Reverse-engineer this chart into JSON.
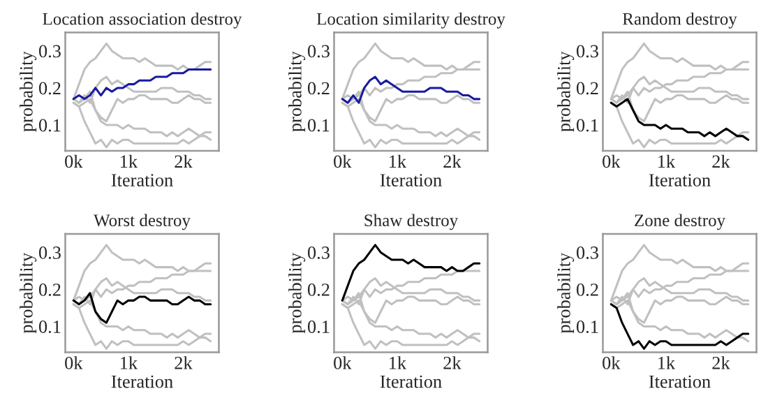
{
  "chart_data": [
    {
      "type": "line",
      "title": "Location association destroy",
      "xlabel": "Iteration",
      "ylabel": "probability",
      "x": [
        0,
        100,
        200,
        300,
        400,
        500,
        600,
        700,
        800,
        900,
        1000,
        1100,
        1200,
        1300,
        1400,
        1500,
        1600,
        1700,
        1800,
        1900,
        2000,
        2100,
        2200,
        2300,
        2400,
        2500
      ],
      "xlim": [
        -150,
        2650
      ],
      "xticks": [
        {
          "value": 0,
          "label": "0k"
        },
        {
          "value": 1000,
          "label": "1k"
        },
        {
          "value": 2000,
          "label": "2k"
        }
      ],
      "ylim": [
        0.03,
        0.35
      ],
      "yticks": [
        0.1,
        0.2,
        0.3
      ],
      "grid": false,
      "legend": false,
      "series": [
        {
          "color": "#c0c0c0",
          "values": [
            0.17,
            0.16,
            0.18,
            0.16,
            0.2,
            0.22,
            0.23,
            0.21,
            0.22,
            0.21,
            0.2,
            0.19,
            0.19,
            0.19,
            0.19,
            0.19,
            0.2,
            0.2,
            0.2,
            0.19,
            0.19,
            0.19,
            0.18,
            0.18,
            0.17,
            0.17
          ]
        },
        {
          "color": "#c0c0c0",
          "values": [
            0.16,
            0.15,
            0.16,
            0.17,
            0.14,
            0.11,
            0.1,
            0.1,
            0.1,
            0.09,
            0.1,
            0.09,
            0.09,
            0.09,
            0.08,
            0.08,
            0.08,
            0.07,
            0.08,
            0.07,
            0.08,
            0.09,
            0.08,
            0.07,
            0.07,
            0.06
          ]
        },
        {
          "color": "#c0c0c0",
          "values": [
            0.17,
            0.16,
            0.17,
            0.19,
            0.14,
            0.12,
            0.11,
            0.14,
            0.17,
            0.16,
            0.17,
            0.17,
            0.18,
            0.18,
            0.17,
            0.17,
            0.17,
            0.17,
            0.16,
            0.16,
            0.17,
            0.18,
            0.17,
            0.17,
            0.16,
            0.16
          ]
        },
        {
          "color": "#c0c0c0",
          "values": [
            0.17,
            0.21,
            0.25,
            0.27,
            0.28,
            0.3,
            0.32,
            0.3,
            0.29,
            0.28,
            0.28,
            0.28,
            0.27,
            0.28,
            0.27,
            0.26,
            0.26,
            0.26,
            0.26,
            0.25,
            0.26,
            0.25,
            0.25,
            0.26,
            0.27,
            0.27
          ]
        },
        {
          "color": "#c0c0c0",
          "values": [
            0.16,
            0.15,
            0.11,
            0.08,
            0.05,
            0.06,
            0.04,
            0.06,
            0.05,
            0.06,
            0.06,
            0.05,
            0.05,
            0.05,
            0.05,
            0.05,
            0.05,
            0.05,
            0.05,
            0.05,
            0.06,
            0.05,
            0.06,
            0.07,
            0.08,
            0.08
          ]
        },
        {
          "color": "#1a1aa0",
          "values": [
            0.17,
            0.18,
            0.17,
            0.18,
            0.2,
            0.18,
            0.2,
            0.19,
            0.2,
            0.2,
            0.21,
            0.21,
            0.22,
            0.22,
            0.22,
            0.23,
            0.23,
            0.23,
            0.24,
            0.24,
            0.24,
            0.25,
            0.25,
            0.25,
            0.25,
            0.25
          ]
        }
      ]
    },
    {
      "type": "line",
      "title": "Location similarity destroy",
      "xlabel": "Iteration",
      "ylabel": "probability",
      "x": [
        0,
        100,
        200,
        300,
        400,
        500,
        600,
        700,
        800,
        900,
        1000,
        1100,
        1200,
        1300,
        1400,
        1500,
        1600,
        1700,
        1800,
        1900,
        2000,
        2100,
        2200,
        2300,
        2400,
        2500
      ],
      "xlim": [
        -150,
        2650
      ],
      "xticks": [
        {
          "value": 0,
          "label": "0k"
        },
        {
          "value": 1000,
          "label": "1k"
        },
        {
          "value": 2000,
          "label": "2k"
        }
      ],
      "ylim": [
        0.03,
        0.35
      ],
      "yticks": [
        0.1,
        0.2,
        0.3
      ],
      "grid": false,
      "legend": false,
      "series": [
        {
          "color": "#c0c0c0",
          "values": [
            0.17,
            0.18,
            0.17,
            0.18,
            0.2,
            0.18,
            0.2,
            0.19,
            0.2,
            0.2,
            0.21,
            0.21,
            0.22,
            0.22,
            0.22,
            0.23,
            0.23,
            0.23,
            0.24,
            0.24,
            0.24,
            0.25,
            0.25,
            0.25,
            0.25,
            0.25
          ]
        },
        {
          "color": "#c0c0c0",
          "values": [
            0.16,
            0.15,
            0.16,
            0.17,
            0.14,
            0.11,
            0.1,
            0.1,
            0.1,
            0.09,
            0.1,
            0.09,
            0.09,
            0.09,
            0.08,
            0.08,
            0.08,
            0.07,
            0.08,
            0.07,
            0.08,
            0.09,
            0.08,
            0.07,
            0.07,
            0.06
          ]
        },
        {
          "color": "#c0c0c0",
          "values": [
            0.17,
            0.16,
            0.17,
            0.19,
            0.14,
            0.12,
            0.11,
            0.14,
            0.17,
            0.16,
            0.17,
            0.17,
            0.18,
            0.18,
            0.17,
            0.17,
            0.17,
            0.17,
            0.16,
            0.16,
            0.17,
            0.18,
            0.17,
            0.17,
            0.16,
            0.16
          ]
        },
        {
          "color": "#c0c0c0",
          "values": [
            0.17,
            0.21,
            0.25,
            0.27,
            0.28,
            0.3,
            0.32,
            0.3,
            0.29,
            0.28,
            0.28,
            0.28,
            0.27,
            0.28,
            0.27,
            0.26,
            0.26,
            0.26,
            0.26,
            0.25,
            0.26,
            0.25,
            0.25,
            0.26,
            0.27,
            0.27
          ]
        },
        {
          "color": "#c0c0c0",
          "values": [
            0.16,
            0.15,
            0.11,
            0.08,
            0.05,
            0.06,
            0.04,
            0.06,
            0.05,
            0.06,
            0.06,
            0.05,
            0.05,
            0.05,
            0.05,
            0.05,
            0.05,
            0.05,
            0.05,
            0.05,
            0.06,
            0.05,
            0.06,
            0.07,
            0.08,
            0.08
          ]
        },
        {
          "color": "#1a1aa0",
          "values": [
            0.17,
            0.16,
            0.18,
            0.16,
            0.2,
            0.22,
            0.23,
            0.21,
            0.22,
            0.21,
            0.2,
            0.19,
            0.19,
            0.19,
            0.19,
            0.19,
            0.2,
            0.2,
            0.2,
            0.19,
            0.19,
            0.19,
            0.18,
            0.18,
            0.17,
            0.17
          ]
        }
      ]
    },
    {
      "type": "line",
      "title": "Random destroy",
      "xlabel": "Iteration",
      "ylabel": "probability",
      "x": [
        0,
        100,
        200,
        300,
        400,
        500,
        600,
        700,
        800,
        900,
        1000,
        1100,
        1200,
        1300,
        1400,
        1500,
        1600,
        1700,
        1800,
        1900,
        2000,
        2100,
        2200,
        2300,
        2400,
        2500
      ],
      "xlim": [
        -150,
        2650
      ],
      "xticks": [
        {
          "value": 0,
          "label": "0k"
        },
        {
          "value": 1000,
          "label": "1k"
        },
        {
          "value": 2000,
          "label": "2k"
        }
      ],
      "ylim": [
        0.03,
        0.35
      ],
      "yticks": [
        0.1,
        0.2,
        0.3
      ],
      "grid": false,
      "legend": false,
      "series": [
        {
          "color": "#c0c0c0",
          "values": [
            0.17,
            0.18,
            0.17,
            0.18,
            0.2,
            0.18,
            0.2,
            0.19,
            0.2,
            0.2,
            0.21,
            0.21,
            0.22,
            0.22,
            0.22,
            0.23,
            0.23,
            0.23,
            0.24,
            0.24,
            0.24,
            0.25,
            0.25,
            0.25,
            0.25,
            0.25
          ]
        },
        {
          "color": "#c0c0c0",
          "values": [
            0.17,
            0.16,
            0.18,
            0.16,
            0.2,
            0.22,
            0.23,
            0.21,
            0.22,
            0.21,
            0.2,
            0.19,
            0.19,
            0.19,
            0.19,
            0.19,
            0.2,
            0.2,
            0.2,
            0.19,
            0.19,
            0.19,
            0.18,
            0.18,
            0.17,
            0.17
          ]
        },
        {
          "color": "#c0c0c0",
          "values": [
            0.17,
            0.16,
            0.17,
            0.19,
            0.14,
            0.12,
            0.11,
            0.14,
            0.17,
            0.16,
            0.17,
            0.17,
            0.18,
            0.18,
            0.17,
            0.17,
            0.17,
            0.17,
            0.16,
            0.16,
            0.17,
            0.18,
            0.17,
            0.17,
            0.16,
            0.16
          ]
        },
        {
          "color": "#c0c0c0",
          "values": [
            0.17,
            0.21,
            0.25,
            0.27,
            0.28,
            0.3,
            0.32,
            0.3,
            0.29,
            0.28,
            0.28,
            0.28,
            0.27,
            0.28,
            0.27,
            0.26,
            0.26,
            0.26,
            0.26,
            0.25,
            0.26,
            0.25,
            0.25,
            0.26,
            0.27,
            0.27
          ]
        },
        {
          "color": "#c0c0c0",
          "values": [
            0.16,
            0.15,
            0.11,
            0.08,
            0.05,
            0.06,
            0.04,
            0.06,
            0.05,
            0.06,
            0.06,
            0.05,
            0.05,
            0.05,
            0.05,
            0.05,
            0.05,
            0.05,
            0.05,
            0.05,
            0.06,
            0.05,
            0.06,
            0.07,
            0.08,
            0.08
          ]
        },
        {
          "color": "#000000",
          "values": [
            0.16,
            0.15,
            0.16,
            0.17,
            0.14,
            0.11,
            0.1,
            0.1,
            0.1,
            0.09,
            0.1,
            0.09,
            0.09,
            0.09,
            0.08,
            0.08,
            0.08,
            0.07,
            0.08,
            0.07,
            0.08,
            0.09,
            0.08,
            0.07,
            0.07,
            0.06
          ]
        }
      ]
    },
    {
      "type": "line",
      "title": "Worst destroy",
      "xlabel": "Iteration",
      "ylabel": "probability",
      "x": [
        0,
        100,
        200,
        300,
        400,
        500,
        600,
        700,
        800,
        900,
        1000,
        1100,
        1200,
        1300,
        1400,
        1500,
        1600,
        1700,
        1800,
        1900,
        2000,
        2100,
        2200,
        2300,
        2400,
        2500
      ],
      "xlim": [
        -150,
        2650
      ],
      "xticks": [
        {
          "value": 0,
          "label": "0k"
        },
        {
          "value": 1000,
          "label": "1k"
        },
        {
          "value": 2000,
          "label": "2k"
        }
      ],
      "ylim": [
        0.03,
        0.35
      ],
      "yticks": [
        0.1,
        0.2,
        0.3
      ],
      "grid": false,
      "legend": false,
      "series": [
        {
          "color": "#c0c0c0",
          "values": [
            0.17,
            0.18,
            0.17,
            0.18,
            0.2,
            0.18,
            0.2,
            0.19,
            0.2,
            0.2,
            0.21,
            0.21,
            0.22,
            0.22,
            0.22,
            0.23,
            0.23,
            0.23,
            0.24,
            0.24,
            0.24,
            0.25,
            0.25,
            0.25,
            0.25,
            0.25
          ]
        },
        {
          "color": "#c0c0c0",
          "values": [
            0.17,
            0.16,
            0.18,
            0.16,
            0.2,
            0.22,
            0.23,
            0.21,
            0.22,
            0.21,
            0.2,
            0.19,
            0.19,
            0.19,
            0.19,
            0.19,
            0.2,
            0.2,
            0.2,
            0.19,
            0.19,
            0.19,
            0.18,
            0.18,
            0.17,
            0.17
          ]
        },
        {
          "color": "#c0c0c0",
          "values": [
            0.16,
            0.15,
            0.16,
            0.17,
            0.14,
            0.11,
            0.1,
            0.1,
            0.1,
            0.09,
            0.1,
            0.09,
            0.09,
            0.09,
            0.08,
            0.08,
            0.08,
            0.07,
            0.08,
            0.07,
            0.08,
            0.09,
            0.08,
            0.07,
            0.07,
            0.06
          ]
        },
        {
          "color": "#c0c0c0",
          "values": [
            0.17,
            0.21,
            0.25,
            0.27,
            0.28,
            0.3,
            0.32,
            0.3,
            0.29,
            0.28,
            0.28,
            0.28,
            0.27,
            0.28,
            0.27,
            0.26,
            0.26,
            0.26,
            0.26,
            0.25,
            0.26,
            0.25,
            0.25,
            0.26,
            0.27,
            0.27
          ]
        },
        {
          "color": "#c0c0c0",
          "values": [
            0.16,
            0.15,
            0.11,
            0.08,
            0.05,
            0.06,
            0.04,
            0.06,
            0.05,
            0.06,
            0.06,
            0.05,
            0.05,
            0.05,
            0.05,
            0.05,
            0.05,
            0.05,
            0.05,
            0.05,
            0.06,
            0.05,
            0.06,
            0.07,
            0.08,
            0.08
          ]
        },
        {
          "color": "#000000",
          "values": [
            0.17,
            0.16,
            0.17,
            0.19,
            0.14,
            0.12,
            0.11,
            0.14,
            0.17,
            0.16,
            0.17,
            0.17,
            0.18,
            0.18,
            0.17,
            0.17,
            0.17,
            0.17,
            0.16,
            0.16,
            0.17,
            0.18,
            0.17,
            0.17,
            0.16,
            0.16
          ]
        }
      ]
    },
    {
      "type": "line",
      "title": "Shaw destroy",
      "xlabel": "Iteration",
      "ylabel": "probability",
      "x": [
        0,
        100,
        200,
        300,
        400,
        500,
        600,
        700,
        800,
        900,
        1000,
        1100,
        1200,
        1300,
        1400,
        1500,
        1600,
        1700,
        1800,
        1900,
        2000,
        2100,
        2200,
        2300,
        2400,
        2500
      ],
      "xlim": [
        -150,
        2650
      ],
      "xticks": [
        {
          "value": 0,
          "label": "0k"
        },
        {
          "value": 1000,
          "label": "1k"
        },
        {
          "value": 2000,
          "label": "2k"
        }
      ],
      "ylim": [
        0.03,
        0.35
      ],
      "yticks": [
        0.1,
        0.2,
        0.3
      ],
      "grid": false,
      "legend": false,
      "series": [
        {
          "color": "#c0c0c0",
          "values": [
            0.17,
            0.18,
            0.17,
            0.18,
            0.2,
            0.18,
            0.2,
            0.19,
            0.2,
            0.2,
            0.21,
            0.21,
            0.22,
            0.22,
            0.22,
            0.23,
            0.23,
            0.23,
            0.24,
            0.24,
            0.24,
            0.25,
            0.25,
            0.25,
            0.25,
            0.25
          ]
        },
        {
          "color": "#c0c0c0",
          "values": [
            0.17,
            0.16,
            0.18,
            0.16,
            0.2,
            0.22,
            0.23,
            0.21,
            0.22,
            0.21,
            0.2,
            0.19,
            0.19,
            0.19,
            0.19,
            0.19,
            0.2,
            0.2,
            0.2,
            0.19,
            0.19,
            0.19,
            0.18,
            0.18,
            0.17,
            0.17
          ]
        },
        {
          "color": "#c0c0c0",
          "values": [
            0.16,
            0.15,
            0.16,
            0.17,
            0.14,
            0.11,
            0.1,
            0.1,
            0.1,
            0.09,
            0.1,
            0.09,
            0.09,
            0.09,
            0.08,
            0.08,
            0.08,
            0.07,
            0.08,
            0.07,
            0.08,
            0.09,
            0.08,
            0.07,
            0.07,
            0.06
          ]
        },
        {
          "color": "#c0c0c0",
          "values": [
            0.17,
            0.16,
            0.17,
            0.19,
            0.14,
            0.12,
            0.11,
            0.14,
            0.17,
            0.16,
            0.17,
            0.17,
            0.18,
            0.18,
            0.17,
            0.17,
            0.17,
            0.17,
            0.16,
            0.16,
            0.17,
            0.18,
            0.17,
            0.17,
            0.16,
            0.16
          ]
        },
        {
          "color": "#c0c0c0",
          "values": [
            0.16,
            0.15,
            0.11,
            0.08,
            0.05,
            0.06,
            0.04,
            0.06,
            0.05,
            0.06,
            0.06,
            0.05,
            0.05,
            0.05,
            0.05,
            0.05,
            0.05,
            0.05,
            0.05,
            0.05,
            0.06,
            0.05,
            0.06,
            0.07,
            0.08,
            0.08
          ]
        },
        {
          "color": "#000000",
          "values": [
            0.17,
            0.21,
            0.25,
            0.27,
            0.28,
            0.3,
            0.32,
            0.3,
            0.29,
            0.28,
            0.28,
            0.28,
            0.27,
            0.28,
            0.27,
            0.26,
            0.26,
            0.26,
            0.26,
            0.25,
            0.26,
            0.25,
            0.25,
            0.26,
            0.27,
            0.27
          ]
        }
      ]
    },
    {
      "type": "line",
      "title": "Zone destroy",
      "xlabel": "Iteration",
      "ylabel": "probability",
      "x": [
        0,
        100,
        200,
        300,
        400,
        500,
        600,
        700,
        800,
        900,
        1000,
        1100,
        1200,
        1300,
        1400,
        1500,
        1600,
        1700,
        1800,
        1900,
        2000,
        2100,
        2200,
        2300,
        2400,
        2500
      ],
      "xlim": [
        -150,
        2650
      ],
      "xticks": [
        {
          "value": 0,
          "label": "0k"
        },
        {
          "value": 1000,
          "label": "1k"
        },
        {
          "value": 2000,
          "label": "2k"
        }
      ],
      "ylim": [
        0.03,
        0.35
      ],
      "yticks": [
        0.1,
        0.2,
        0.3
      ],
      "grid": false,
      "legend": false,
      "series": [
        {
          "color": "#c0c0c0",
          "values": [
            0.17,
            0.18,
            0.17,
            0.18,
            0.2,
            0.18,
            0.2,
            0.19,
            0.2,
            0.2,
            0.21,
            0.21,
            0.22,
            0.22,
            0.22,
            0.23,
            0.23,
            0.23,
            0.24,
            0.24,
            0.24,
            0.25,
            0.25,
            0.25,
            0.25,
            0.25
          ]
        },
        {
          "color": "#c0c0c0",
          "values": [
            0.17,
            0.16,
            0.18,
            0.16,
            0.2,
            0.22,
            0.23,
            0.21,
            0.22,
            0.21,
            0.2,
            0.19,
            0.19,
            0.19,
            0.19,
            0.19,
            0.2,
            0.2,
            0.2,
            0.19,
            0.19,
            0.19,
            0.18,
            0.18,
            0.17,
            0.17
          ]
        },
        {
          "color": "#c0c0c0",
          "values": [
            0.16,
            0.15,
            0.16,
            0.17,
            0.14,
            0.11,
            0.1,
            0.1,
            0.1,
            0.09,
            0.1,
            0.09,
            0.09,
            0.09,
            0.08,
            0.08,
            0.08,
            0.07,
            0.08,
            0.07,
            0.08,
            0.09,
            0.08,
            0.07,
            0.07,
            0.06
          ]
        },
        {
          "color": "#c0c0c0",
          "values": [
            0.17,
            0.16,
            0.17,
            0.19,
            0.14,
            0.12,
            0.11,
            0.14,
            0.17,
            0.16,
            0.17,
            0.17,
            0.18,
            0.18,
            0.17,
            0.17,
            0.17,
            0.17,
            0.16,
            0.16,
            0.17,
            0.18,
            0.17,
            0.17,
            0.16,
            0.16
          ]
        },
        {
          "color": "#c0c0c0",
          "values": [
            0.17,
            0.21,
            0.25,
            0.27,
            0.28,
            0.3,
            0.32,
            0.3,
            0.29,
            0.28,
            0.28,
            0.28,
            0.27,
            0.28,
            0.27,
            0.26,
            0.26,
            0.26,
            0.26,
            0.25,
            0.26,
            0.25,
            0.25,
            0.26,
            0.27,
            0.27
          ]
        },
        {
          "color": "#000000",
          "values": [
            0.16,
            0.15,
            0.11,
            0.08,
            0.05,
            0.06,
            0.04,
            0.06,
            0.05,
            0.06,
            0.06,
            0.05,
            0.05,
            0.05,
            0.05,
            0.05,
            0.05,
            0.05,
            0.05,
            0.05,
            0.06,
            0.05,
            0.06,
            0.07,
            0.08,
            0.08
          ]
        }
      ]
    }
  ]
}
